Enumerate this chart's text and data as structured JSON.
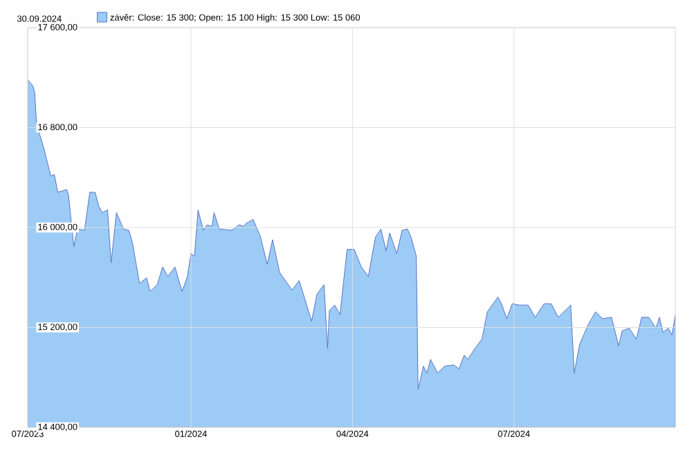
{
  "chart_data": {
    "type": "area",
    "title": "30.09.2024",
    "x": [
      "2023-10-01",
      "2023-10-04",
      "2023-10-05",
      "2023-10-06",
      "2023-10-10",
      "2023-10-14",
      "2023-10-16",
      "2023-10-18",
      "2023-10-23",
      "2023-10-24",
      "2023-10-27",
      "2023-10-29",
      "2023-11-02",
      "2023-11-05",
      "2023-11-08",
      "2023-11-10",
      "2023-11-12",
      "2023-11-15",
      "2023-11-17",
      "2023-11-20",
      "2023-11-24",
      "2023-11-27",
      "2023-11-29",
      "2023-12-03",
      "2023-12-07",
      "2023-12-09",
      "2023-12-13",
      "2023-12-16",
      "2023-12-19",
      "2023-12-23",
      "2023-12-27",
      "2023-12-30",
      "2024-01-01",
      "2024-01-03",
      "2024-01-05",
      "2024-01-08",
      "2024-01-10",
      "2024-01-13",
      "2024-01-14",
      "2024-01-17",
      "2024-01-24",
      "2024-01-28",
      "2024-01-31",
      "2024-02-01",
      "2024-02-05",
      "2024-02-09",
      "2024-02-13",
      "2024-02-16",
      "2024-02-20",
      "2024-02-27",
      "2024-03-02",
      "2024-03-06",
      "2024-03-09",
      "2024-03-12",
      "2024-03-16",
      "2024-03-18",
      "2024-03-19",
      "2024-03-22",
      "2024-03-25",
      "2024-03-29",
      "2024-04-02",
      "2024-04-06",
      "2024-04-10",
      "2024-04-12",
      "2024-04-14",
      "2024-04-17",
      "2024-04-20",
      "2024-04-22",
      "2024-04-26",
      "2024-04-29",
      "2024-05-02",
      "2024-05-04",
      "2024-05-07",
      "2024-05-08",
      "2024-05-11",
      "2024-05-13",
      "2024-05-15",
      "2024-05-19",
      "2024-05-23",
      "2024-05-28",
      "2024-05-31",
      "2024-06-03",
      "2024-06-05",
      "2024-06-09",
      "2024-06-13",
      "2024-06-16",
      "2024-06-22",
      "2024-06-24",
      "2024-06-27",
      "2024-06-30",
      "2024-07-04",
      "2024-07-09",
      "2024-07-13",
      "2024-07-18",
      "2024-07-22",
      "2024-07-26",
      "2024-08-02",
      "2024-08-04",
      "2024-08-07",
      "2024-08-12",
      "2024-08-16",
      "2024-08-20",
      "2024-08-25",
      "2024-08-29",
      "2024-08-31",
      "2024-09-04",
      "2024-09-08",
      "2024-09-11",
      "2024-09-15",
      "2024-09-19",
      "2024-09-21",
      "2024-09-23",
      "2024-09-26",
      "2024-09-28",
      "2024-09-30"
    ],
    "series": [
      {
        "name": "závěr: Close: 15 300; Open: 15 100 High: 15 300 Low: 15 060",
        "color": "#9ccbf5",
        "values": [
          17185,
          17131,
          17077,
          16826,
          16641,
          16413,
          16424,
          16282,
          16304,
          16260,
          15847,
          15988,
          15978,
          16282,
          16282,
          16173,
          16119,
          16141,
          15717,
          16119,
          15988,
          15978,
          15880,
          15553,
          15597,
          15488,
          15542,
          15684,
          15608,
          15684,
          15488,
          15608,
          15792,
          15771,
          16141,
          15978,
          16021,
          16010,
          16119,
          15988,
          15978,
          16021,
          16010,
          16032,
          16065,
          15934,
          15706,
          15902,
          15640,
          15499,
          15575,
          15390,
          15249,
          15466,
          15542,
          15031,
          15336,
          15379,
          15303,
          15825,
          15825,
          15684,
          15608,
          15771,
          15923,
          15988,
          15814,
          15956,
          15792,
          15978,
          15988,
          15923,
          15771,
          14705,
          14890,
          14835,
          14944,
          14835,
          14890,
          14900,
          14868,
          14977,
          14944,
          15031,
          15107,
          15325,
          15444,
          15390,
          15270,
          15390,
          15379,
          15379,
          15281,
          15390,
          15390,
          15281,
          15379,
          14835,
          15064,
          15227,
          15325,
          15270,
          15281,
          15053,
          15173,
          15194,
          15107,
          15281,
          15281,
          15194,
          15281,
          15162,
          15194,
          15140,
          15300
        ]
      }
    ],
    "xlim": [
      "2023-10-01",
      "2024-09-30"
    ],
    "xticks": [
      {
        "value": "2023-10-01",
        "label": "07/2023"
      },
      {
        "value": "2024-01-01",
        "label": "01/2024"
      },
      {
        "value": "2024-04-01",
        "label": "04/2024"
      },
      {
        "value": "2024-07-01",
        "label": "07/2024"
      }
    ],
    "ylim": [
      14400,
      17600
    ],
    "yticks": [
      {
        "value": 14400,
        "label": "14 400,00"
      },
      {
        "value": 15200,
        "label": "15 200,00"
      },
      {
        "value": 16000,
        "label": "16 000,00"
      },
      {
        "value": 16800,
        "label": "16 800,00"
      },
      {
        "value": 17600,
        "label": "17 600,00"
      }
    ],
    "grid": true,
    "legend": "top left"
  }
}
